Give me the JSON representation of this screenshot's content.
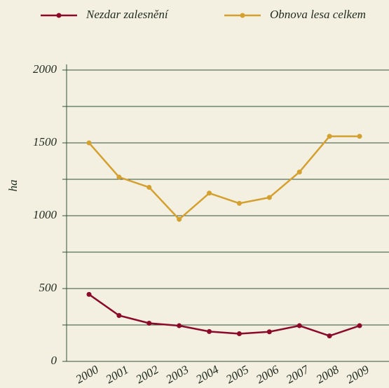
{
  "chart_data": {
    "type": "line",
    "ylabel": "ha",
    "x": [
      "2000",
      "2001",
      "2002",
      "2003",
      "2004",
      "2005",
      "2006",
      "2007",
      "2008",
      "2009"
    ],
    "series": [
      {
        "name": "Nezdar zalesnění",
        "color": "#8b0a2a",
        "values": [
          460,
          315,
          262,
          245,
          205,
          190,
          203,
          245,
          175,
          245
        ]
      },
      {
        "name": "Obnova lesa celkem",
        "color": "#d4a030",
        "values": [
          1500,
          1265,
          1195,
          975,
          1155,
          1085,
          1125,
          1300,
          1545,
          1545
        ]
      }
    ],
    "ylim": [
      0,
      2000
    ],
    "yticks": [
      0,
      500,
      1000,
      1500,
      2000
    ],
    "minor_yticks": [
      250,
      750,
      1250,
      1750
    ],
    "grid": true,
    "legend": "top"
  }
}
